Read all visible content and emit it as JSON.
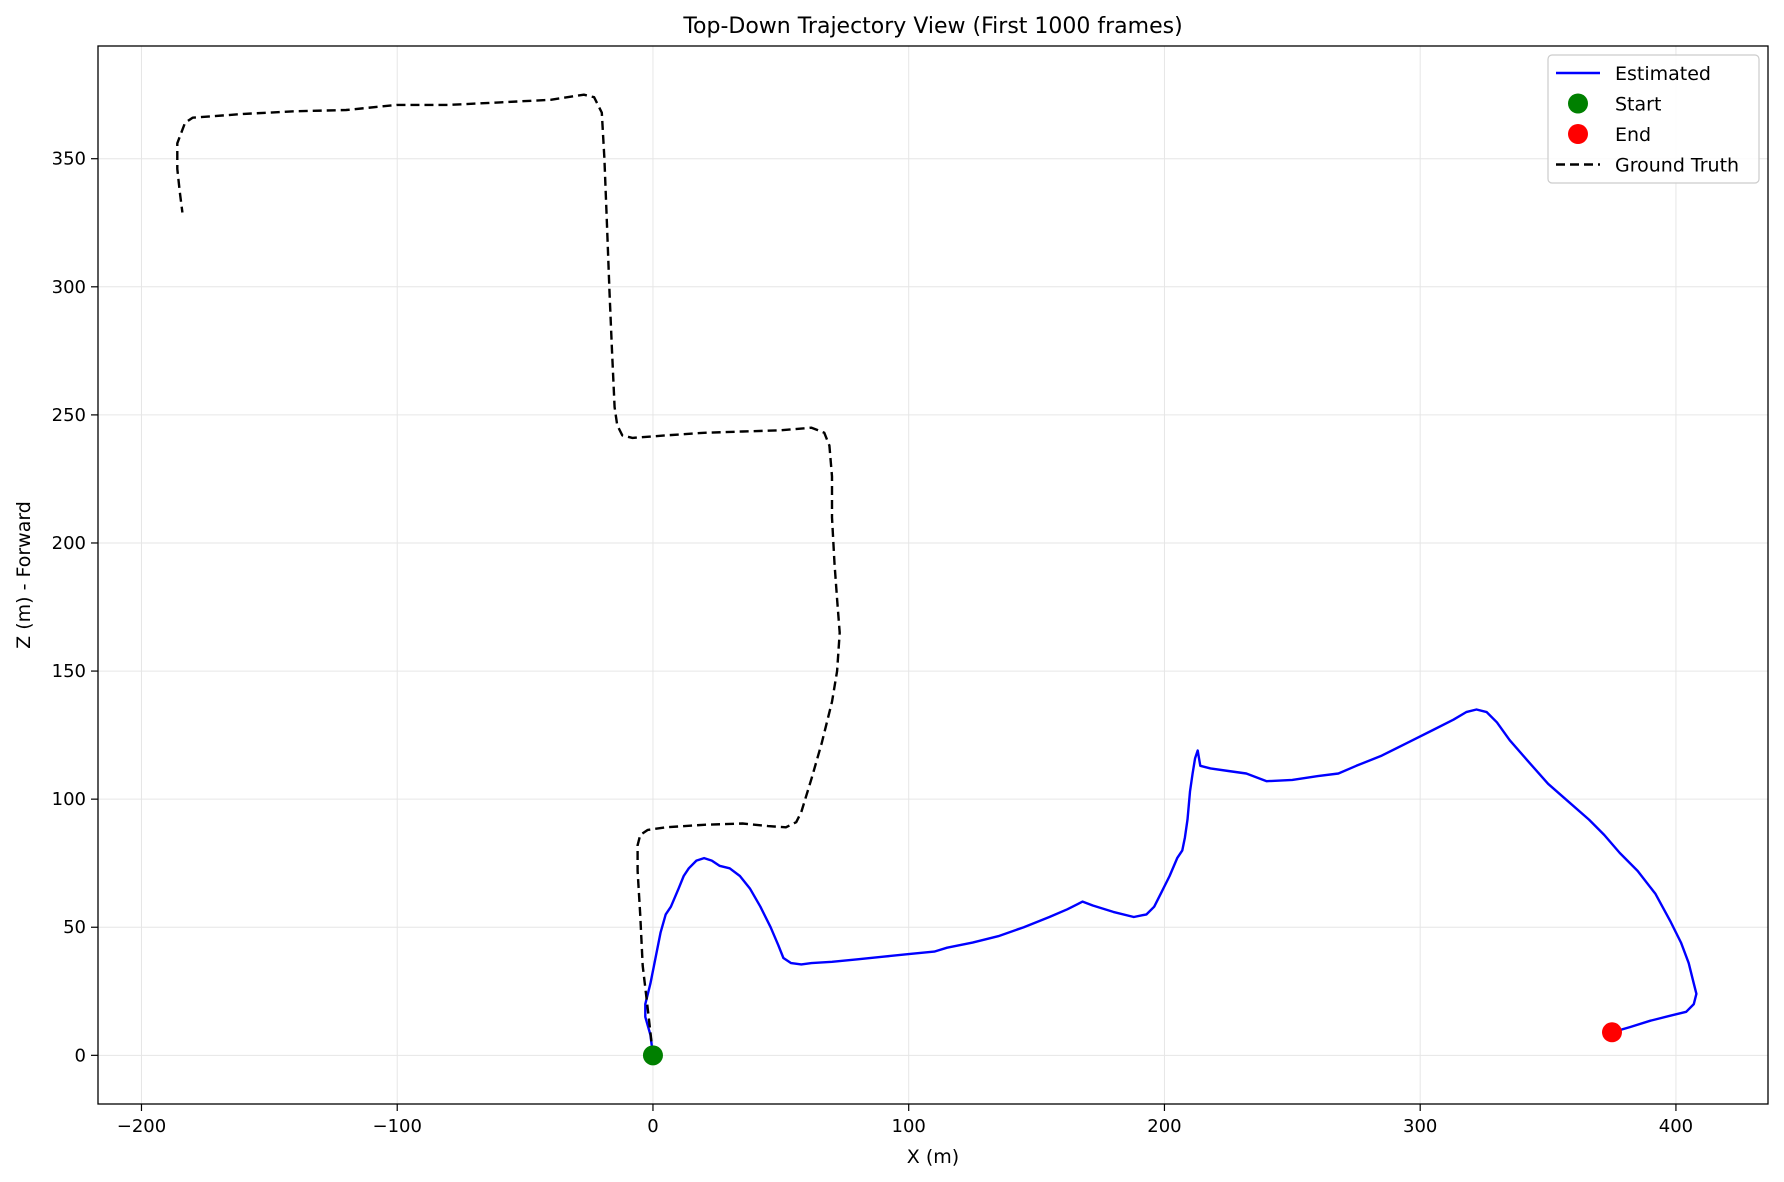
{
  "chart_data": {
    "type": "line",
    "title": "Top-Down Trajectory View (First 1000 frames)",
    "xlabel": "X (m)",
    "ylabel": "Z (m) - Forward",
    "xlim": [
      -217,
      436
    ],
    "ylim": [
      -19,
      394
    ],
    "xticks": [
      -200,
      -100,
      0,
      100,
      200,
      300,
      400
    ],
    "yticks": [
      0,
      50,
      100,
      150,
      200,
      250,
      300,
      350
    ],
    "xtick_labels": [
      "−200",
      "−100",
      "0",
      "100",
      "200",
      "300",
      "400"
    ],
    "ytick_labels": [
      "0",
      "50",
      "100",
      "150",
      "200",
      "250",
      "300",
      "350"
    ],
    "grid": true,
    "legend_position": "top-right",
    "series": [
      {
        "name": "Estimated",
        "style": "solid",
        "color": "#0000ff",
        "points": [
          [
            0,
            0
          ],
          [
            -1,
            8
          ],
          [
            -3,
            15
          ],
          [
            -3,
            20
          ],
          [
            -1,
            28
          ],
          [
            1,
            38
          ],
          [
            3,
            48
          ],
          [
            5,
            55
          ],
          [
            7,
            58
          ],
          [
            10,
            65
          ],
          [
            12,
            70
          ],
          [
            14,
            73
          ],
          [
            17,
            76
          ],
          [
            20,
            77
          ],
          [
            23,
            76
          ],
          [
            26,
            74
          ],
          [
            30,
            73
          ],
          [
            34,
            70
          ],
          [
            38,
            65
          ],
          [
            42,
            58
          ],
          [
            46,
            50
          ],
          [
            49,
            43
          ],
          [
            51,
            38
          ],
          [
            54,
            36
          ],
          [
            58,
            35.5
          ],
          [
            62,
            36
          ],
          [
            70,
            36.5
          ],
          [
            80,
            37.5
          ],
          [
            90,
            38.5
          ],
          [
            100,
            39.5
          ],
          [
            110,
            40.5
          ],
          [
            115,
            42
          ],
          [
            125,
            44
          ],
          [
            135,
            46.5
          ],
          [
            145,
            50
          ],
          [
            155,
            54
          ],
          [
            162,
            57
          ],
          [
            166,
            59
          ],
          [
            168,
            60
          ],
          [
            172,
            58.5
          ],
          [
            180,
            56
          ],
          [
            188,
            54
          ],
          [
            193,
            55
          ],
          [
            196,
            58
          ],
          [
            199,
            64
          ],
          [
            202,
            70
          ],
          [
            205,
            77
          ],
          [
            207,
            80
          ],
          [
            208,
            85
          ],
          [
            209,
            92
          ],
          [
            210,
            103
          ],
          [
            211,
            110
          ],
          [
            212,
            116
          ],
          [
            213,
            119
          ],
          [
            214,
            113
          ],
          [
            218,
            112
          ],
          [
            225,
            111
          ],
          [
            232,
            110
          ],
          [
            240,
            107
          ],
          [
            250,
            107.5
          ],
          [
            260,
            109
          ],
          [
            268,
            110
          ],
          [
            275,
            113
          ],
          [
            285,
            117
          ],
          [
            295,
            122
          ],
          [
            305,
            127
          ],
          [
            313,
            131
          ],
          [
            318,
            134
          ],
          [
            322,
            135
          ],
          [
            326,
            134
          ],
          [
            330,
            130
          ],
          [
            335,
            123
          ],
          [
            342,
            115
          ],
          [
            350,
            106
          ],
          [
            358,
            99
          ],
          [
            366,
            92
          ],
          [
            372,
            86
          ],
          [
            378,
            79
          ],
          [
            385,
            72
          ],
          [
            392,
            63
          ],
          [
            398,
            52
          ],
          [
            402,
            44
          ],
          [
            405,
            36
          ],
          [
            407,
            28
          ],
          [
            408,
            24
          ],
          [
            407,
            20
          ],
          [
            404,
            17
          ],
          [
            398,
            15.5
          ],
          [
            390,
            13.5
          ],
          [
            382,
            11
          ],
          [
            375,
            9
          ]
        ]
      },
      {
        "name": "Ground Truth",
        "style": "dashed",
        "color": "#000000",
        "points": [
          [
            0,
            0
          ],
          [
            -2,
            18
          ],
          [
            -4,
            35
          ],
          [
            -5,
            55
          ],
          [
            -6,
            72
          ],
          [
            -6,
            82
          ],
          [
            -5,
            86
          ],
          [
            -2,
            88
          ],
          [
            5,
            89
          ],
          [
            20,
            90
          ],
          [
            35,
            90.5
          ],
          [
            45,
            89.5
          ],
          [
            52,
            89
          ],
          [
            56,
            91
          ],
          [
            58,
            95
          ],
          [
            62,
            108
          ],
          [
            66,
            122
          ],
          [
            70,
            138
          ],
          [
            72,
            150
          ],
          [
            73,
            165
          ],
          [
            72,
            178
          ],
          [
            71,
            192
          ],
          [
            70,
            210
          ],
          [
            70,
            226
          ],
          [
            69,
            238
          ],
          [
            67,
            243
          ],
          [
            62,
            245
          ],
          [
            50,
            244
          ],
          [
            35,
            243.5
          ],
          [
            20,
            243
          ],
          [
            5,
            242
          ],
          [
            -8,
            241
          ],
          [
            -12,
            242
          ],
          [
            -14,
            246
          ],
          [
            -15,
            253
          ],
          [
            -16,
            275
          ],
          [
            -17,
            298
          ],
          [
            -18,
            325
          ],
          [
            -19,
            350
          ],
          [
            -20,
            368
          ],
          [
            -23,
            374
          ],
          [
            -27,
            375
          ],
          [
            -40,
            373
          ],
          [
            -60,
            372
          ],
          [
            -80,
            371
          ],
          [
            -100,
            371
          ],
          [
            -120,
            369
          ],
          [
            -140,
            368.5
          ],
          [
            -160,
            367.5
          ],
          [
            -180,
            366
          ],
          [
            -183,
            364
          ],
          [
            -186,
            356
          ],
          [
            -186,
            346
          ],
          [
            -185,
            337
          ],
          [
            -184,
            329
          ]
        ]
      }
    ],
    "markers": [
      {
        "name": "Start",
        "x": 0,
        "y": 0,
        "color": "#008000"
      },
      {
        "name": "End",
        "x": 375,
        "y": 9,
        "color": "#ff0000"
      }
    ],
    "legend": [
      {
        "label": "Estimated",
        "kind": "line-solid",
        "color": "#0000ff"
      },
      {
        "label": "Start",
        "kind": "dot",
        "color": "#008000"
      },
      {
        "label": "End",
        "kind": "dot",
        "color": "#ff0000"
      },
      {
        "label": "Ground Truth",
        "kind": "line-dashed",
        "color": "#000000"
      }
    ]
  }
}
